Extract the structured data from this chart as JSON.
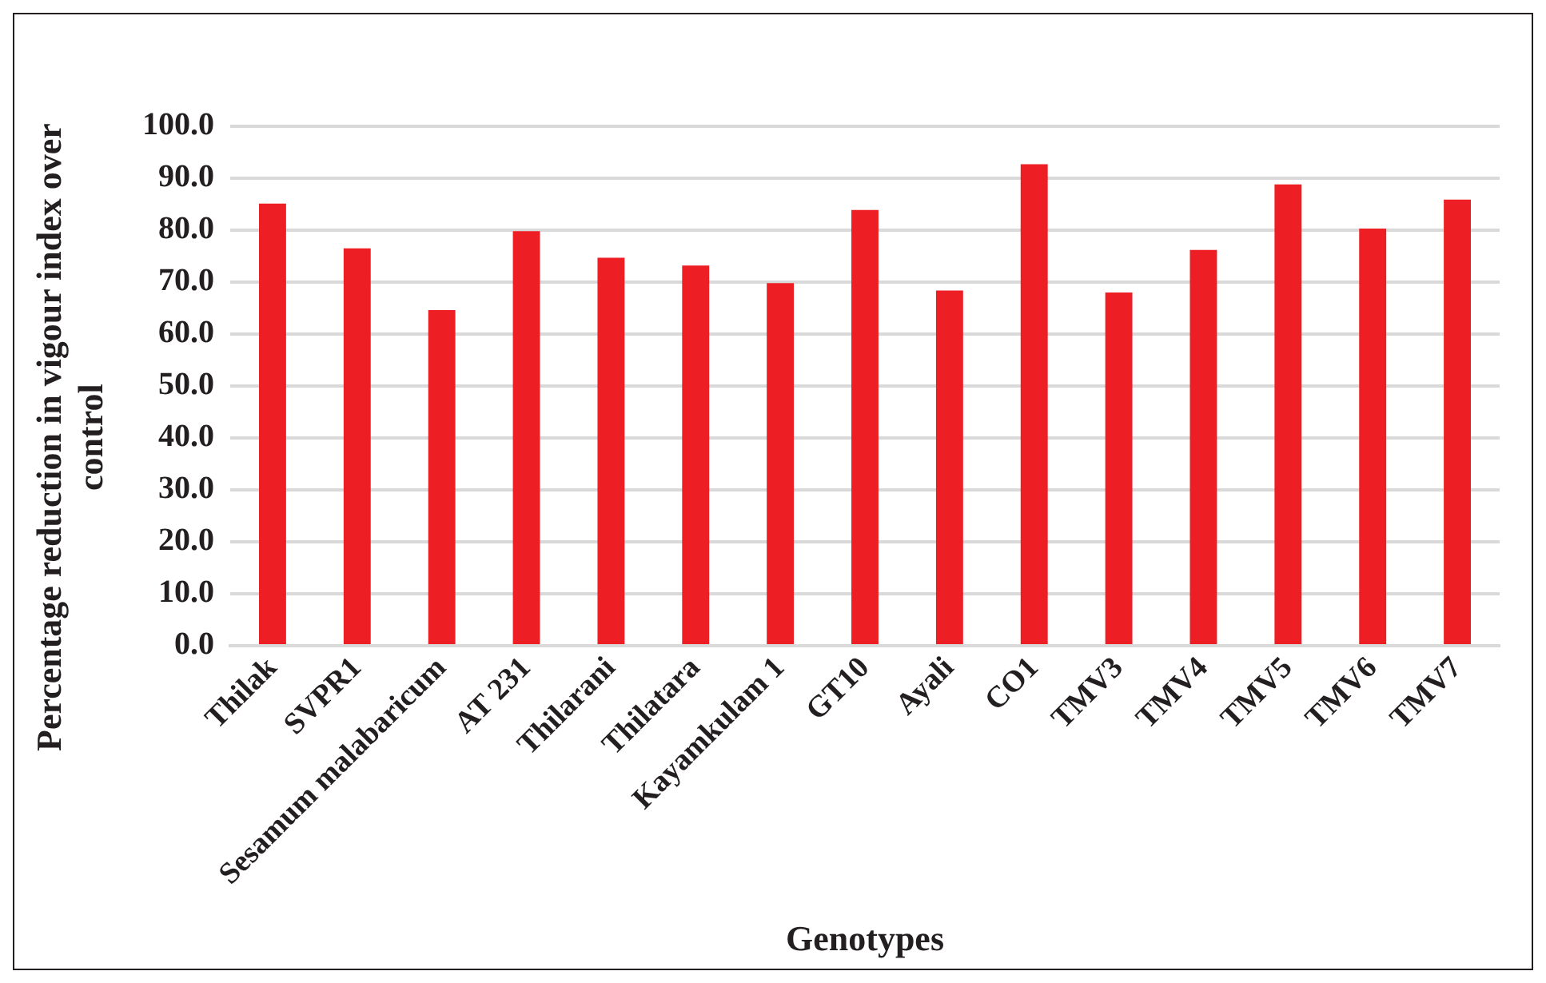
{
  "chart_data": {
    "type": "bar",
    "xlabel": "Genotypes",
    "ylabel": "Percentage reduction in vigour index over control",
    "categories": [
      "Thilak",
      "SVPR1",
      "Sesamum malabaricum",
      "AT 231",
      "Thilarani",
      "Thilatara",
      "Kayamkulam 1",
      "GT10",
      "Ayali",
      "CO1",
      "TMV3",
      "TMV4",
      "TMV5",
      "TMV6",
      "TMV7"
    ],
    "values": [
      85.1,
      76.5,
      64.6,
      79.8,
      74.7,
      73.2,
      69.8,
      83.9,
      68.4,
      92.7,
      68.0,
      76.2,
      88.8,
      80.3,
      85.9
    ],
    "color": "#ed1f24",
    "ylim": [
      0,
      100
    ],
    "yticks": [
      {
        "value": 0,
        "label": "0.0"
      },
      {
        "value": 10,
        "label": "10.0"
      },
      {
        "value": 20,
        "label": "20.0"
      },
      {
        "value": 30,
        "label": "30.0"
      },
      {
        "value": 40,
        "label": "40.0"
      },
      {
        "value": 50,
        "label": "50.0"
      },
      {
        "value": 60,
        "label": "60.0"
      },
      {
        "value": 70,
        "label": "70.0"
      },
      {
        "value": 80,
        "label": "80.0"
      },
      {
        "value": 90,
        "label": "90.0"
      },
      {
        "value": 100,
        "label": "100.0"
      }
    ],
    "grid": "y"
  }
}
